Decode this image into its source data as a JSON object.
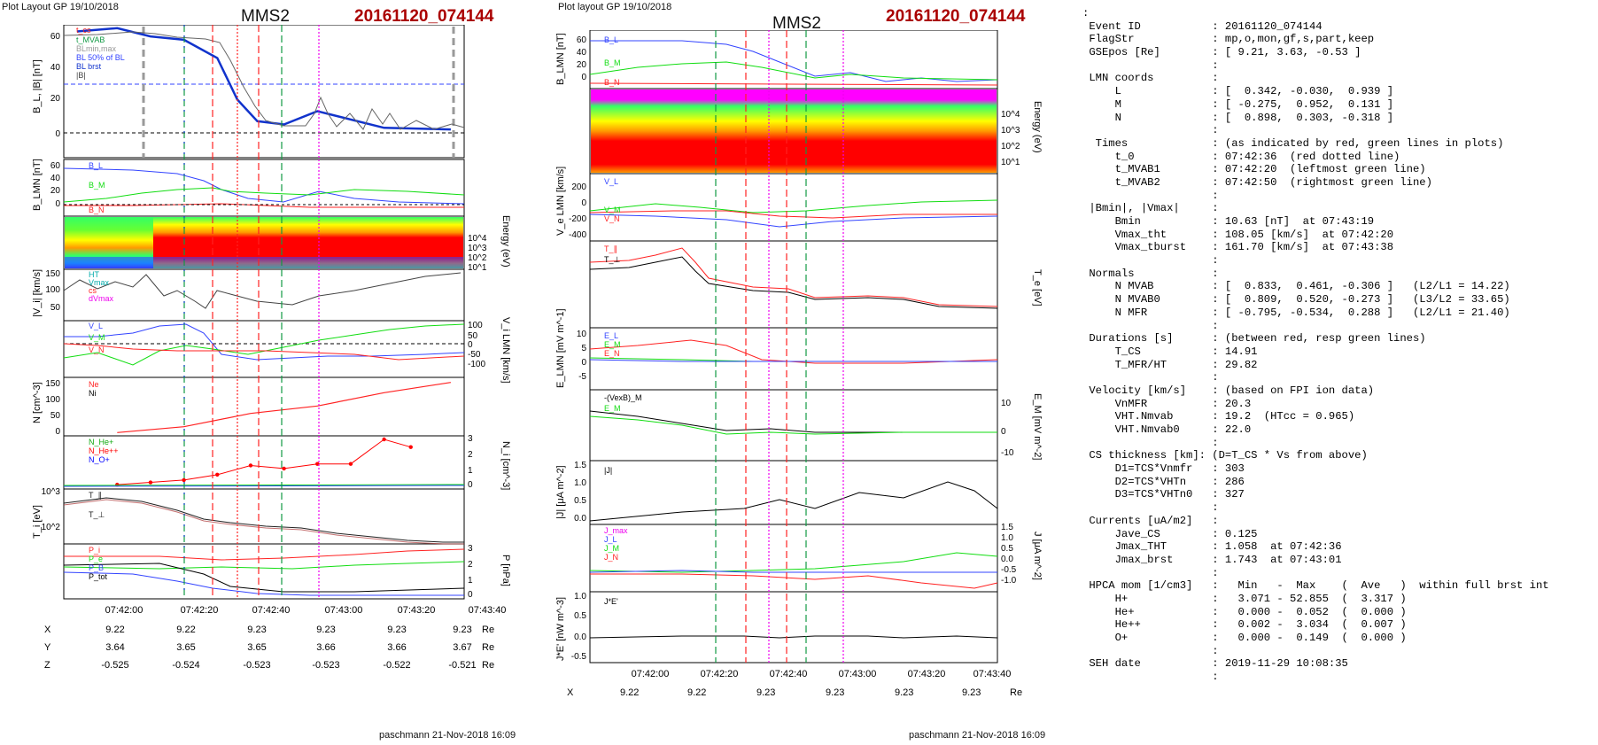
{
  "left_plot": {
    "header": "Plot Layout GP 19/10/2018",
    "spacecraft": "MMS2",
    "event_title": "20161120_074144",
    "footer": "paschmann 21-Nov-2018 16:09"
  },
  "right_plot": {
    "header": "Plot layout GP 19/10/2018",
    "spacecraft": "MMS2",
    "event_title": "20161120_074144",
    "footer": "paschmann 21-Nov-2018 16:09"
  },
  "colors": {
    "title_red": "#aa0000",
    "spectrogram": [
      "#1a1aff",
      "#00ffff",
      "#33ff33",
      "#ffff00",
      "#ff9900",
      "#ff0000",
      "#ff00ff"
    ]
  },
  "chart_data": [
    {
      "type": "line",
      "ylabel": "B_L, |B| [nT]",
      "x_time_labels": [
        "07:42:00",
        "07:42:20",
        "07:42:40",
        "07:43:00",
        "07:43:20",
        "07:43:40"
      ],
      "ylim": [
        -10,
        70
      ],
      "yticks": [
        "0",
        "20",
        "40",
        "60"
      ],
      "legend": [
        "t_cs",
        "t_MVAB",
        "BLmin,max",
        "BL 50% of BL",
        "BL brst",
        "|B|"
      ],
      "series": [
        {
          "name": "BL brst",
          "x": [
            "07:41:48",
            "07:42:00",
            "07:42:10",
            "07:42:20",
            "07:42:30",
            "07:42:36",
            "07:42:42",
            "07:42:50",
            "07:43:00",
            "07:43:20",
            "07:43:40"
          ],
          "values": [
            66,
            68,
            63,
            61,
            50,
            25,
            12,
            10,
            18,
            8,
            7
          ]
        }
      ]
    },
    {
      "type": "line",
      "ylabel": "B_LMN [nT]",
      "yticks": [
        "0",
        "20",
        "40",
        "60"
      ],
      "legend": [
        "B_L",
        "B_M",
        "B_N"
      ]
    },
    {
      "type": "heatmap",
      "ylabel": "Energy (eV)",
      "yticks": [
        "10^4",
        "10^3",
        "10^2",
        "10^1"
      ]
    },
    {
      "type": "line",
      "ylabel": "|V_i| [km/s]",
      "yticks": [
        "50",
        "100",
        "150"
      ],
      "legend": [
        "HT",
        "Vmax",
        "cs",
        "dVmax"
      ]
    },
    {
      "type": "line",
      "ylabel": "V_i LMN [km/s]",
      "yticks": [
        "100",
        "50",
        "0",
        "-50",
        "-100"
      ],
      "legend": [
        "V_L",
        "V_M",
        "V_N"
      ]
    },
    {
      "type": "line",
      "ylabel": "N [cm^-3]",
      "yticks": [
        "0",
        "50",
        "100",
        "150"
      ],
      "legend": [
        "Ne",
        "Ni"
      ],
      "series": [
        {
          "name": "Ni",
          "x": [
            "07:42:00",
            "07:42:20",
            "07:42:40",
            "07:43:00",
            "07:43:20",
            "07:43:40"
          ],
          "values": [
            5,
            25,
            70,
            95,
            140,
            175
          ]
        }
      ]
    },
    {
      "type": "scatter",
      "ylabel": "N_i [cm^-3]",
      "yticks": [
        "3",
        "2",
        "1",
        "0"
      ],
      "legend": [
        "N_He+",
        "N_He++",
        "N_O+"
      ],
      "series": [
        {
          "name": "N_He++",
          "x": [
            "07:42:00",
            "07:42:10",
            "07:42:20",
            "07:42:30",
            "07:42:40",
            "07:42:50",
            "07:43:00",
            "07:43:10",
            "07:43:20",
            "07:43:28"
          ],
          "values": [
            0.05,
            0.2,
            0.35,
            0.7,
            1.3,
            1.1,
            1.4,
            1.4,
            3.0,
            2.5
          ]
        }
      ]
    },
    {
      "type": "line",
      "ylabel": "T_i [eV]",
      "yticks": [
        "10^3",
        "10^2"
      ],
      "legend": [
        "T_∥",
        "T_⊥"
      ]
    },
    {
      "type": "line",
      "ylabel": "P [nPa]",
      "yticks": [
        "3",
        "2",
        "1",
        "0"
      ],
      "legend": [
        "P_i",
        "P_e",
        "P_B",
        "P_tot"
      ]
    },
    {
      "type": "line",
      "ylabel": "B_LMN [nT]",
      "yticks": [
        "60",
        "40",
        "20",
        "0"
      ],
      "legend": [
        "B_L",
        "B_M",
        "B_N"
      ]
    },
    {
      "type": "heatmap",
      "ylabel": "Energy (eV)",
      "yticks": [
        "10^4",
        "10^3",
        "10^2",
        "10^1"
      ]
    },
    {
      "type": "line",
      "ylabel": "V_e LMN [km/s]",
      "yticks": [
        "200",
        "0",
        "-200",
        "-400"
      ],
      "legend": [
        "V_L",
        "V_M",
        "V_N"
      ]
    },
    {
      "type": "line",
      "ylabel": "T_e [eV]",
      "legend": [
        "T_∥",
        "T_⊥"
      ]
    },
    {
      "type": "line",
      "ylabel": "E_LMN [mV m^-1]",
      "yticks": [
        "10",
        "5",
        "0",
        "-5"
      ],
      "legend": [
        "E_L",
        "E_M",
        "E_N"
      ]
    },
    {
      "type": "line",
      "ylabel": "E_M [mV m^-2]",
      "yticks": [
        "10",
        "0",
        "-10"
      ],
      "legend": [
        "-(VexB)_M",
        "E_M"
      ]
    },
    {
      "type": "line",
      "ylabel": "|J| [μA m^-2]",
      "yticks": [
        "1.5",
        "1.0",
        "0.5",
        "0.0"
      ],
      "legend": [
        "|J|"
      ]
    },
    {
      "type": "line",
      "ylabel": "J [μA m^-2]",
      "yticks": [
        "1.5",
        "1.0",
        "0.5",
        "0.0",
        "-0.5",
        "-1.0"
      ],
      "legend": [
        "J_max",
        "J_L",
        "J_M",
        "J_N"
      ]
    },
    {
      "type": "line",
      "ylabel": "J*E' [nW m^-3]",
      "yticks": [
        "1.0",
        "0.5",
        "0.0",
        "-0.5"
      ],
      "legend": [
        "J*E'"
      ]
    }
  ],
  "coords_table": {
    "rows": [
      {
        "label": "X",
        "values": [
          "9.22",
          "9.22",
          "9.23",
          "9.23",
          "9.23",
          "9.23"
        ],
        "unit": "Re"
      },
      {
        "label": "Y",
        "values": [
          "3.64",
          "3.65",
          "3.65",
          "3.66",
          "3.66",
          "3.67"
        ],
        "unit": "Re"
      },
      {
        "label": "Z",
        "values": [
          "-0.525",
          "-0.524",
          "-0.523",
          "-0.523",
          "-0.522",
          "-0.521"
        ],
        "unit": "Re"
      }
    ],
    "time_labels": [
      "07:42:00",
      "07:42:20",
      "07:42:40",
      "07:43:00",
      "07:43:20",
      "07:43:40"
    ]
  },
  "info_lines": [
    ":",
    " Event ID           : 20161120_074144",
    " FlagStr            : mp,o,mon,gf,s,part,keep",
    " GSEpos [Re]        : [ 9.21, 3.63, -0.53 ]",
    "                    :",
    " LMN coords         :",
    "     L              : [  0.342, -0.030,  0.939 ]",
    "     M              : [ -0.275,  0.952,  0.131 ]",
    "     N              : [  0.898,  0.303, -0.318 ]",
    "                    :",
    "  Times             : (as indicated by red, green lines in plots)",
    "     t_0            : 07:42:36  (red dotted line)",
    "     t_MVAB1        : 07:42:20  (leftmost green line)",
    "     t_MVAB2        : 07:42:50  (rightmost green line)",
    "                    :",
    " |Bmin|, |Vmax|     :",
    "     Bmin           : 10.63 [nT]  at 07:43:19",
    "     Vmax_tht       : 108.05 [km/s]  at 07:42:20",
    "     Vmax_tburst    : 161.70 [km/s]  at 07:43:38",
    "                    :",
    " Normals            :",
    "     N MVAB         : [  0.833,  0.461, -0.306 ]   (L2/L1 = 14.22)",
    "     N MVAB0        : [  0.809,  0.520, -0.273 ]   (L3/L2 = 33.65)",
    "     N MFR          : [ -0.795, -0.534,  0.288 ]   (L2/L1 = 21.40)",
    "                    :",
    " Durations [s]      : (between red, resp green lines)",
    "     T_CS           : 14.91",
    "     T_MFR/HT       : 29.82",
    "                    :",
    " Velocity [km/s]    : (based on FPI ion data)",
    "     VnMFR          : 20.3",
    "     VHT.Nmvab      : 19.2  (HTcc = 0.965)",
    "     VHT.Nmvab0     : 22.0",
    "                    :",
    " CS thickness [km]: (D=T_CS * Vs from above)",
    "     D1=TCS*Vnmfr   : 303",
    "     D2=TCS*VHTn    : 286",
    "     D3=TCS*VHTn0   : 327",
    "                    :",
    " Currents [uA/m2]   :",
    "     Jave_CS        : 0.125",
    "     Jmax_THT       : 1.058  at 07:42:36",
    "     Jmax_brst      : 1.743  at 07:43:01",
    "                    :",
    " HPCA mom [1/cm3]   :   Min   -  Max    (  Ave   )  within full brst int",
    "     H+             :   3.071 - 52.855  (  3.317 )",
    "     He+            :   0.000 -  0.052  (  0.000 )",
    "     He++           :   0.002 -  3.034  (  0.007 )",
    "     O+             :   0.000 -  0.149  (  0.000 )",
    "                    :",
    " SEH date           : 2019-11-29 10:08:35",
    "                    :"
  ]
}
